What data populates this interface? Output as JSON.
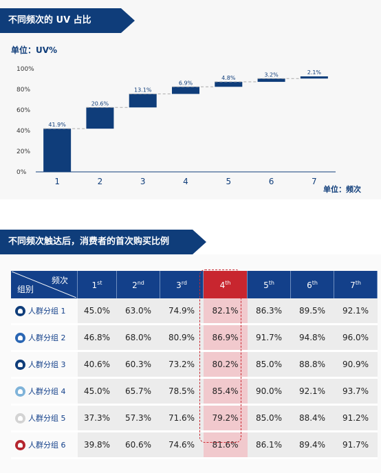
{
  "section1": {
    "title": "不同频次的 UV 占比",
    "unit_top": "单位：UV%",
    "unit_bottom": "单位：频次"
  },
  "section2": {
    "title": "不同频次触达后，消费者的首次购买比例"
  },
  "colors": {
    "primary": "#0f3d7a",
    "highlight": "#c8262f",
    "highlight_bg": "#f1c9cd"
  },
  "chart_data": {
    "type": "bar",
    "subtype": "waterfall",
    "categories": [
      "1",
      "2",
      "3",
      "4",
      "5",
      "6",
      "7"
    ],
    "values": [
      41.9,
      20.6,
      13.1,
      6.9,
      4.8,
      3.2,
      2.1
    ],
    "value_labels": [
      "41.9%",
      "20.6%",
      "13.1%",
      "6.9%",
      "4.8%",
      "3.2%",
      "2.1%"
    ],
    "yticks": [
      "0%",
      "20%",
      "40%",
      "60%",
      "80%",
      "100%"
    ],
    "ylim": [
      0,
      100
    ],
    "grid": false
  },
  "table": {
    "corner_top": "频次",
    "corner_bottom": "组别",
    "headers": [
      {
        "num": "1",
        "sup": "st"
      },
      {
        "num": "2",
        "sup": "nd"
      },
      {
        "num": "3",
        "sup": "rd"
      },
      {
        "num": "4",
        "sup": "th"
      },
      {
        "num": "5",
        "sup": "th"
      },
      {
        "num": "6",
        "sup": "th"
      },
      {
        "num": "7",
        "sup": "th"
      }
    ],
    "highlight_col": 3,
    "rows": [
      {
        "group": "人群分组 1",
        "icon_color": "#0f3d7a",
        "cells": [
          "45.0%",
          "63.0%",
          "74.9%",
          "82.1%",
          "86.3%",
          "89.5%",
          "92.1%"
        ]
      },
      {
        "group": "人群分组 2",
        "icon_color": "#2a66b3",
        "cells": [
          "46.8%",
          "68.0%",
          "80.9%",
          "86.9%",
          "91.7%",
          "94.8%",
          "96.0%"
        ]
      },
      {
        "group": "人群分组 3",
        "icon_color": "#0f3d7a",
        "cells": [
          "40.6%",
          "60.3%",
          "73.2%",
          "80.2%",
          "85.0%",
          "88.8%",
          "90.9%"
        ]
      },
      {
        "group": "人群分组 4",
        "icon_color": "#7fb3d9",
        "cells": [
          "45.0%",
          "65.7%",
          "78.5%",
          "85.4%",
          "90.0%",
          "92.1%",
          "93.7%"
        ]
      },
      {
        "group": "人群分组 5",
        "icon_color": "#d3d3d3",
        "cells": [
          "37.3%",
          "57.3%",
          "71.6%",
          "79.2%",
          "85.0%",
          "88.4%",
          "91.2%"
        ]
      },
      {
        "group": "人群分组 6",
        "icon_color": "#b5262f",
        "cells": [
          "39.8%",
          "60.6%",
          "74.6%",
          "81.6%",
          "86.1%",
          "89.4%",
          "91.7%"
        ]
      }
    ]
  }
}
